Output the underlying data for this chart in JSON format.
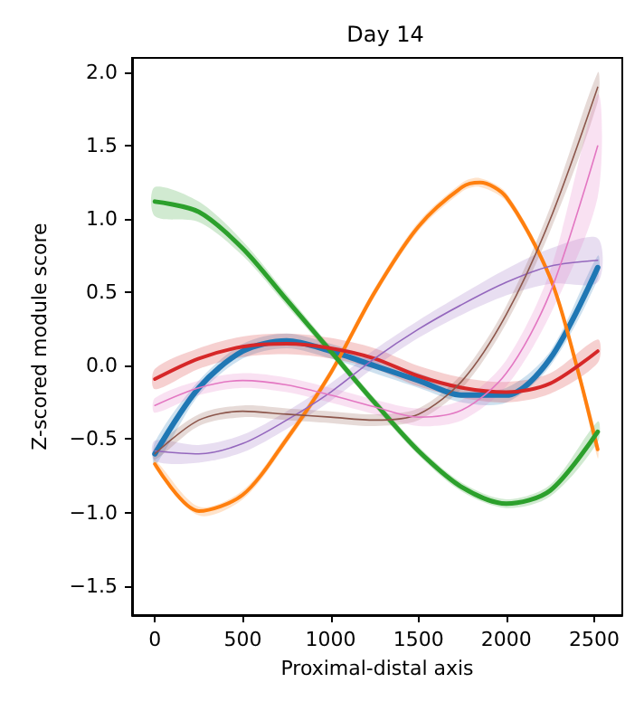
{
  "chart_data": {
    "type": "line",
    "title": "Day 14",
    "xlabel": "Proximal-distal axis",
    "ylabel": "Z-scored module score",
    "x": [
      0,
      250,
      500,
      750,
      1000,
      1250,
      1500,
      1750,
      2000,
      2250,
      2520
    ],
    "series": [
      {
        "color": "#1f77b4",
        "values": [
          -0.6,
          -0.15,
          0.1,
          0.17,
          0.1,
          0.0,
          -0.1,
          -0.2,
          -0.2,
          0.05,
          0.67
        ],
        "lower": [
          -0.68,
          -0.2,
          0.05,
          0.12,
          0.05,
          -0.05,
          -0.15,
          -0.25,
          -0.25,
          0.0,
          0.59
        ],
        "upper": [
          -0.52,
          -0.1,
          0.15,
          0.22,
          0.15,
          0.05,
          -0.05,
          -0.15,
          -0.15,
          0.1,
          0.75
        ]
      },
      {
        "color": "#ff7f0e",
        "x": [
          0,
          250,
          500,
          750,
          1000,
          1250,
          1500,
          1750,
          1850,
          2000,
          2250,
          2400,
          2520
        ],
        "values": [
          -0.67,
          -0.99,
          -0.88,
          -0.5,
          -0.05,
          0.5,
          0.95,
          1.22,
          1.25,
          1.15,
          0.6,
          0.0,
          -0.57
        ],
        "lower": [
          -0.7,
          -1.02,
          -0.91,
          -0.53,
          -0.08,
          0.47,
          0.92,
          1.19,
          1.22,
          1.12,
          0.57,
          -0.03,
          -0.63
        ],
        "upper": [
          -0.64,
          -0.96,
          -0.85,
          -0.47,
          -0.02,
          0.53,
          0.98,
          1.25,
          1.28,
          1.18,
          0.63,
          0.03,
          -0.51
        ]
      },
      {
        "color": "#2ca02c",
        "values": [
          1.12,
          1.05,
          0.8,
          0.45,
          0.1,
          -0.25,
          -0.58,
          -0.83,
          -0.94,
          -0.85,
          -0.45
        ],
        "lower": [
          1.02,
          0.98,
          0.75,
          0.41,
          0.07,
          -0.28,
          -0.61,
          -0.86,
          -0.97,
          -0.89,
          -0.52
        ],
        "upper": [
          1.22,
          1.12,
          0.85,
          0.49,
          0.13,
          -0.22,
          -0.55,
          -0.8,
          -0.91,
          -0.81,
          -0.38
        ]
      },
      {
        "color": "#d62728",
        "values": [
          -0.09,
          0.05,
          0.13,
          0.15,
          0.12,
          0.05,
          -0.07,
          -0.15,
          -0.18,
          -0.12,
          0.1
        ],
        "lower": [
          -0.16,
          -0.02,
          0.06,
          0.08,
          0.05,
          -0.02,
          -0.14,
          -0.22,
          -0.25,
          -0.19,
          0.02
        ],
        "upper": [
          -0.02,
          0.12,
          0.2,
          0.22,
          0.19,
          0.12,
          0.0,
          -0.08,
          -0.11,
          -0.05,
          0.18
        ]
      },
      {
        "color": "#9467bd",
        "values": [
          -0.58,
          -0.6,
          -0.53,
          -0.37,
          -0.18,
          0.05,
          0.25,
          0.42,
          0.57,
          0.68,
          0.72
        ],
        "lower": [
          -0.65,
          -0.66,
          -0.59,
          -0.43,
          -0.24,
          -0.01,
          0.19,
          0.35,
          0.48,
          0.56,
          0.57
        ],
        "upper": [
          -0.51,
          -0.54,
          -0.47,
          -0.31,
          -0.12,
          0.11,
          0.31,
          0.49,
          0.66,
          0.8,
          0.87
        ]
      },
      {
        "color": "#8c564b",
        "values": [
          -0.6,
          -0.37,
          -0.31,
          -0.33,
          -0.35,
          -0.37,
          -0.33,
          -0.1,
          0.35,
          1.0,
          1.9
        ],
        "lower": [
          -0.64,
          -0.41,
          -0.35,
          -0.37,
          -0.39,
          -0.41,
          -0.37,
          -0.15,
          0.29,
          0.92,
          1.8
        ],
        "upper": [
          -0.56,
          -0.33,
          -0.27,
          -0.29,
          -0.31,
          -0.33,
          -0.29,
          -0.05,
          0.41,
          1.08,
          2.0
        ]
      },
      {
        "color": "#e377c2",
        "values": [
          -0.27,
          -0.15,
          -0.1,
          -0.13,
          -0.2,
          -0.28,
          -0.35,
          -0.3,
          -0.05,
          0.5,
          1.5
        ],
        "lower": [
          -0.32,
          -0.2,
          -0.15,
          -0.18,
          -0.25,
          -0.33,
          -0.41,
          -0.37,
          -0.14,
          0.35,
          1.15
        ],
        "upper": [
          -0.22,
          -0.1,
          -0.05,
          -0.08,
          -0.15,
          -0.23,
          -0.29,
          -0.23,
          0.04,
          0.65,
          1.85
        ]
      }
    ],
    "xlim": [
      -130,
      2660
    ],
    "xticks": [
      0,
      500,
      1000,
      1500,
      2000,
      2500
    ],
    "ylim": [
      -1.7,
      2.1
    ],
    "yticks": [
      {
        "value": -1.5,
        "label": "−1.5"
      },
      {
        "value": -1.0,
        "label": "−1.0"
      },
      {
        "value": -0.5,
        "label": "−0.5"
      },
      {
        "value": 0.0,
        "label": "0.0"
      },
      {
        "value": 0.5,
        "label": "0.5"
      },
      {
        "value": 1.0,
        "label": "1.0"
      },
      {
        "value": 1.5,
        "label": "1.5"
      },
      {
        "value": 2.0,
        "label": "2.0"
      }
    ]
  }
}
